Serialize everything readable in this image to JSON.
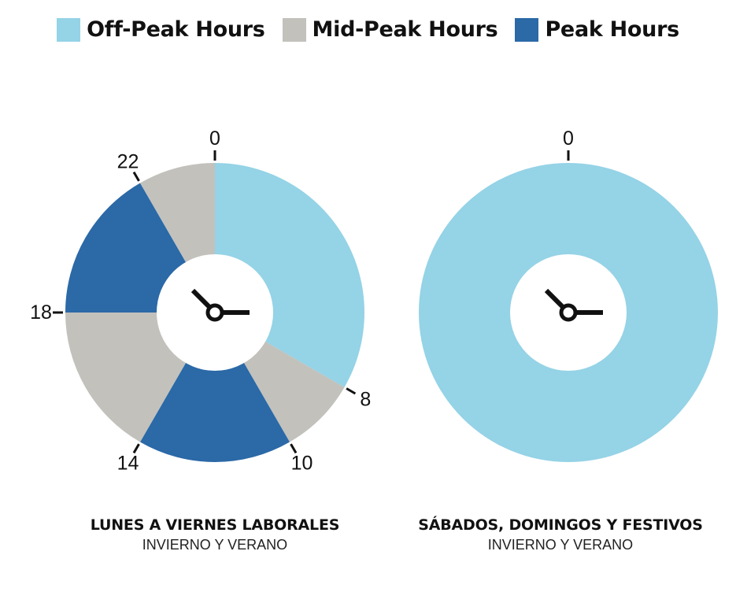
{
  "legend": [
    {
      "label": "Off-Peak Hours",
      "color": "#95d3e6"
    },
    {
      "label": "Mid-Peak Hours",
      "color": "#c2c1bc"
    },
    {
      "label": "Peak Hours",
      "color": "#2b69a7"
    }
  ],
  "chart_data": [
    {
      "type": "pie",
      "variant": "donut-24h-clock",
      "title": "LUNES A VIERNES LABORALES",
      "subtitle": "INVIERNO Y VERANO",
      "tick_labels": [
        "0",
        "8",
        "10",
        "14",
        "18",
        "22"
      ],
      "segments": [
        {
          "category": "Off-Peak Hours",
          "start_hour": 0,
          "end_hour": 8
        },
        {
          "category": "Mid-Peak Hours",
          "start_hour": 8,
          "end_hour": 10
        },
        {
          "category": "Peak Hours",
          "start_hour": 10,
          "end_hour": 14
        },
        {
          "category": "Mid-Peak Hours",
          "start_hour": 14,
          "end_hour": 18
        },
        {
          "category": "Peak Hours",
          "start_hour": 18,
          "end_hour": 22
        },
        {
          "category": "Mid-Peak Hours",
          "start_hour": 22,
          "end_hour": 24
        }
      ]
    },
    {
      "type": "pie",
      "variant": "donut-24h-clock",
      "title": "SÁBADOS, DOMINGOS Y FESTIVOS",
      "subtitle": "INVIERNO Y VERANO",
      "tick_labels": [
        "0"
      ],
      "segments": [
        {
          "category": "Off-Peak Hours",
          "start_hour": 0,
          "end_hour": 24
        }
      ]
    }
  ]
}
